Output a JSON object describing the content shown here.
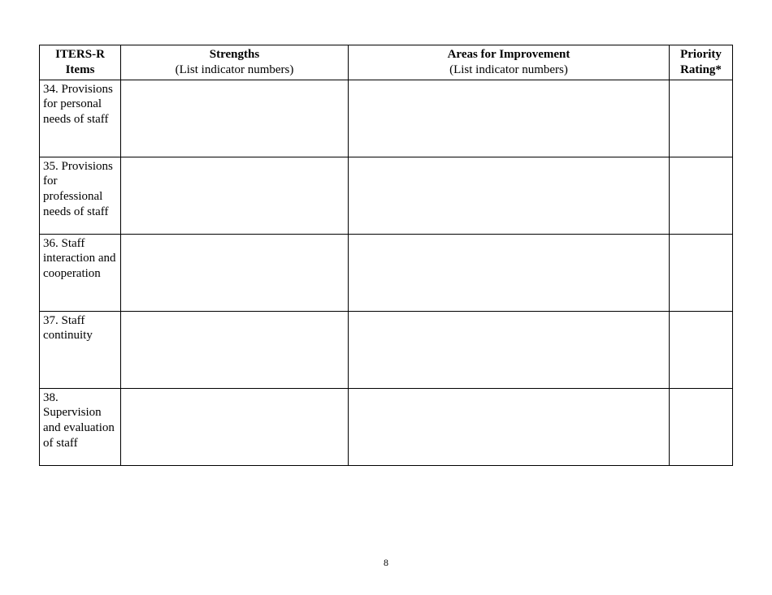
{
  "table": {
    "columns": [
      {
        "title": "ITERS-R Items",
        "subtitle": ""
      },
      {
        "title": "Strengths",
        "subtitle": "(List indicator numbers)"
      },
      {
        "title": "Areas for Improvement",
        "subtitle": "(List indicator numbers)"
      },
      {
        "title": "Priority Rating*",
        "subtitle": ""
      }
    ],
    "rows": [
      {
        "item": "34. Provisions for personal needs of staff",
        "strengths": "",
        "areas": "",
        "priority": ""
      },
      {
        "item": "35. Provisions for professional needs of staff",
        "strengths": "",
        "areas": "",
        "priority": ""
      },
      {
        "item": "36. Staff interaction and cooperation",
        "strengths": "",
        "areas": "",
        "priority": ""
      },
      {
        "item": "37. Staff continuity",
        "strengths": "",
        "areas": "",
        "priority": ""
      },
      {
        "item": "38. Supervision and evaluation of staff",
        "strengths": "",
        "areas": "",
        "priority": ""
      }
    ]
  },
  "page_number": "8"
}
